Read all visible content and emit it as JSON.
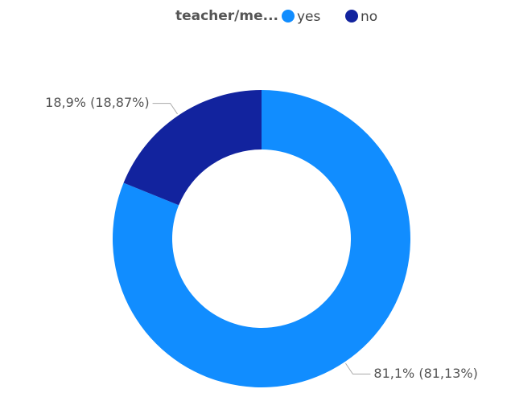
{
  "chart_data": {
    "type": "pie",
    "donut": true,
    "legend_title": "teacher/me...",
    "categories": [
      "yes",
      "no"
    ],
    "values": [
      81.13,
      18.87
    ],
    "value_labels": [
      "81,1% (81,13%)",
      "18,9% (18,87%)"
    ],
    "colors": [
      "#118DFF",
      "#12239E"
    ],
    "legend": "top"
  }
}
